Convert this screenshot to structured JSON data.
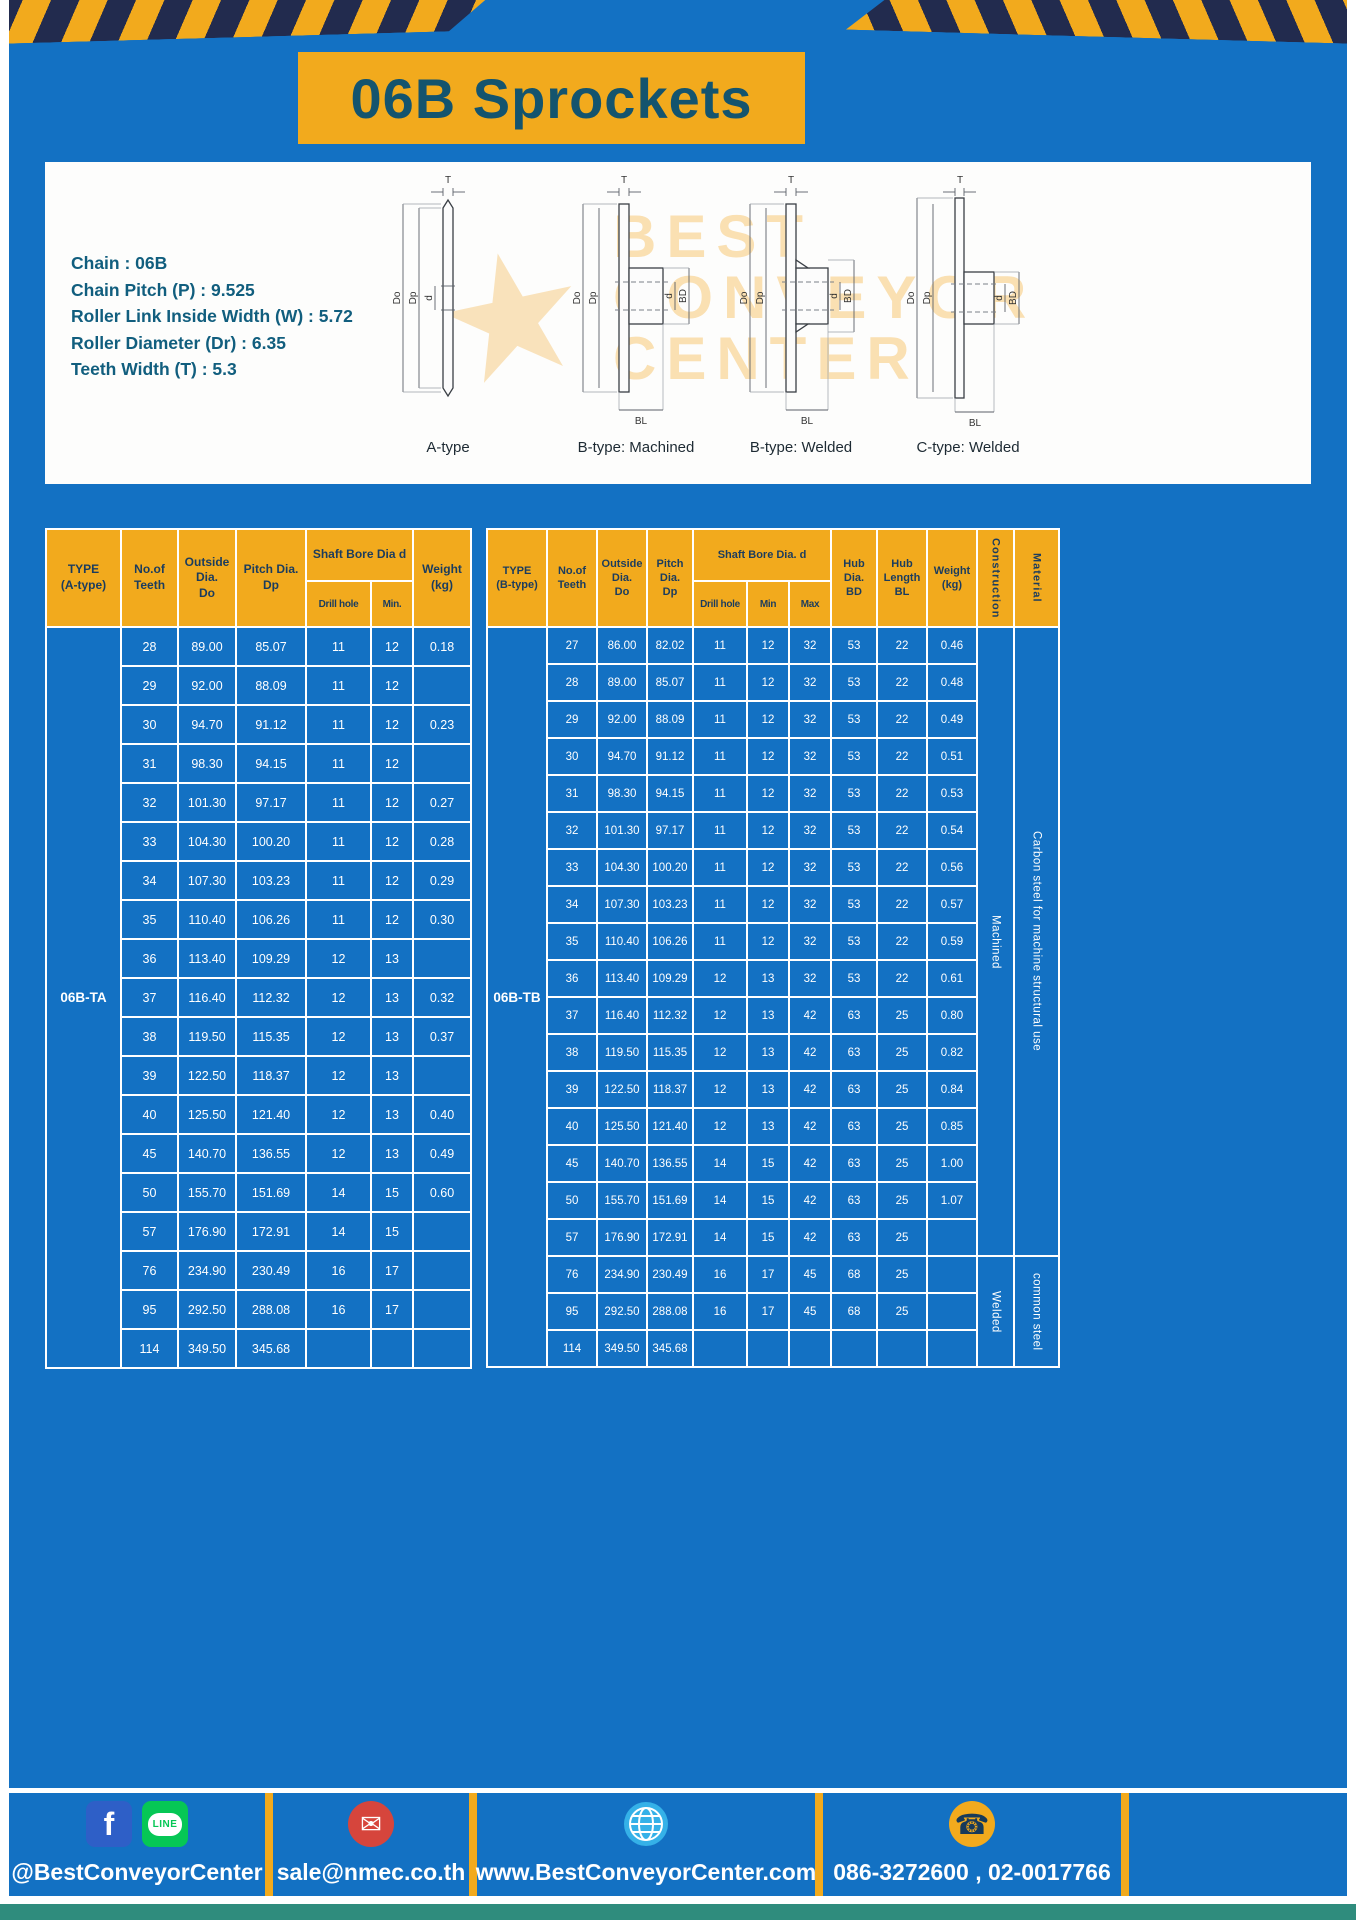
{
  "colors": {
    "background_blue": "#1371c3",
    "accent_yellow": "#f2aa1d",
    "header_text_navy": "#1b3c5e",
    "title_teal": "#14546e",
    "spec_text_teal": "#115e7e",
    "stripe_navy": "#222b4e",
    "teal_bar": "#2f8c7d",
    "facebook_blue": "#2e5fc7",
    "line_green": "#06c755",
    "mail_red": "#d6453c",
    "globe_blue": "#35b1e8"
  },
  "banner": {
    "title": "06B Sprockets"
  },
  "specs": {
    "lines": [
      "Chain : 06B",
      "Chain Pitch (P) : 9.525",
      "Roller Link Inside Width (W) : 5.72",
      "Roller Diameter (Dr) : 6.35",
      "Teeth Width (T) : 5.3"
    ]
  },
  "watermark": {
    "star": "★",
    "lines": [
      "BEST",
      "CONVEYOR",
      "CENTER"
    ]
  },
  "drawings": {
    "labels": [
      "A-type",
      "B-type: Machined",
      "B-type: Welded",
      "C-type: Welded"
    ],
    "dims": {
      "t": "T",
      "do": "Do",
      "dp": "Dp",
      "d": "d",
      "bd": "BD",
      "bl": "BL"
    }
  },
  "table_a": {
    "headers": {
      "type": "TYPE\n(A-type)",
      "teeth": "No.of\nTeeth",
      "outside": "Outside\nDia.\nDo",
      "pitch": "Pitch Dia.\nDp",
      "bore_group": "Shaft Bore Dia d",
      "drill": "Drill hole",
      "min": "Min.",
      "weight": "Weight\n(kg)"
    },
    "type_label": "06B-TA",
    "rows": [
      [
        "28",
        "89.00",
        "85.07",
        "11",
        "12",
        "0.18"
      ],
      [
        "29",
        "92.00",
        "88.09",
        "11",
        "12",
        ""
      ],
      [
        "30",
        "94.70",
        "91.12",
        "11",
        "12",
        "0.23"
      ],
      [
        "31",
        "98.30",
        "94.15",
        "11",
        "12",
        ""
      ],
      [
        "32",
        "101.30",
        "97.17",
        "11",
        "12",
        "0.27"
      ],
      [
        "33",
        "104.30",
        "100.20",
        "11",
        "12",
        "0.28"
      ],
      [
        "34",
        "107.30",
        "103.23",
        "11",
        "12",
        "0.29"
      ],
      [
        "35",
        "110.40",
        "106.26",
        "11",
        "12",
        "0.30"
      ],
      [
        "36",
        "113.40",
        "109.29",
        "12",
        "13",
        ""
      ],
      [
        "37",
        "116.40",
        "112.32",
        "12",
        "13",
        "0.32"
      ],
      [
        "38",
        "119.50",
        "115.35",
        "12",
        "13",
        "0.37"
      ],
      [
        "39",
        "122.50",
        "118.37",
        "12",
        "13",
        ""
      ],
      [
        "40",
        "125.50",
        "121.40",
        "12",
        "13",
        "0.40"
      ],
      [
        "45",
        "140.70",
        "136.55",
        "12",
        "13",
        "0.49"
      ],
      [
        "50",
        "155.70",
        "151.69",
        "14",
        "15",
        "0.60"
      ],
      [
        "57",
        "176.90",
        "172.91",
        "14",
        "15",
        ""
      ],
      [
        "76",
        "234.90",
        "230.49",
        "16",
        "17",
        ""
      ],
      [
        "95",
        "292.50",
        "288.08",
        "16",
        "17",
        ""
      ],
      [
        "114",
        "349.50",
        "345.68",
        "",
        "",
        ""
      ]
    ]
  },
  "table_b": {
    "headers": {
      "type": "TYPE\n(B-type)",
      "teeth": "No.of\nTeeth",
      "outside": "Outside\nDia.\nDo",
      "pitch": "Pitch\nDia.\nDp",
      "bore_group": "Shaft Bore Dia. d",
      "drill": "Drill hole",
      "min": "Min",
      "max": "Max",
      "hub_dia": "Hub\nDia.\nBD",
      "hub_len": "Hub\nLength\nBL",
      "weight": "Weight\n(kg)",
      "construction": "Construction",
      "material": "Material"
    },
    "type_label": "06B-TB",
    "rows": [
      [
        "27",
        "86.00",
        "82.02",
        "11",
        "12",
        "32",
        "53",
        "22",
        "0.46"
      ],
      [
        "28",
        "89.00",
        "85.07",
        "11",
        "12",
        "32",
        "53",
        "22",
        "0.48"
      ],
      [
        "29",
        "92.00",
        "88.09",
        "11",
        "12",
        "32",
        "53",
        "22",
        "0.49"
      ],
      [
        "30",
        "94.70",
        "91.12",
        "11",
        "12",
        "32",
        "53",
        "22",
        "0.51"
      ],
      [
        "31",
        "98.30",
        "94.15",
        "11",
        "12",
        "32",
        "53",
        "22",
        "0.53"
      ],
      [
        "32",
        "101.30",
        "97.17",
        "11",
        "12",
        "32",
        "53",
        "22",
        "0.54"
      ],
      [
        "33",
        "104.30",
        "100.20",
        "11",
        "12",
        "32",
        "53",
        "22",
        "0.56"
      ],
      [
        "34",
        "107.30",
        "103.23",
        "11",
        "12",
        "32",
        "53",
        "22",
        "0.57"
      ],
      [
        "35",
        "110.40",
        "106.26",
        "11",
        "12",
        "32",
        "53",
        "22",
        "0.59"
      ],
      [
        "36",
        "113.40",
        "109.29",
        "12",
        "13",
        "32",
        "53",
        "22",
        "0.61"
      ],
      [
        "37",
        "116.40",
        "112.32",
        "12",
        "13",
        "42",
        "63",
        "25",
        "0.80"
      ],
      [
        "38",
        "119.50",
        "115.35",
        "12",
        "13",
        "42",
        "63",
        "25",
        "0.82"
      ],
      [
        "39",
        "122.50",
        "118.37",
        "12",
        "13",
        "42",
        "63",
        "25",
        "0.84"
      ],
      [
        "40",
        "125.50",
        "121.40",
        "12",
        "13",
        "42",
        "63",
        "25",
        "0.85"
      ],
      [
        "45",
        "140.70",
        "136.55",
        "14",
        "15",
        "42",
        "63",
        "25",
        "1.00"
      ],
      [
        "50",
        "155.70",
        "151.69",
        "14",
        "15",
        "42",
        "63",
        "25",
        "1.07"
      ],
      [
        "57",
        "176.90",
        "172.91",
        "14",
        "15",
        "42",
        "63",
        "25",
        ""
      ],
      [
        "76",
        "234.90",
        "230.49",
        "16",
        "17",
        "45",
        "68",
        "25",
        ""
      ],
      [
        "95",
        "292.50",
        "288.08",
        "16",
        "17",
        "45",
        "68",
        "25",
        ""
      ],
      [
        "114",
        "349.50",
        "345.68",
        "",
        "",
        "",
        "",
        "",
        ""
      ]
    ],
    "span_columns": [
      {
        "name": "construction",
        "segments": [
          {
            "label": "Machined",
            "rows": 17
          },
          {
            "label": "Welded",
            "rows": 3
          }
        ]
      },
      {
        "name": "material",
        "segments": [
          {
            "label": "Carbon steel for machine structural use",
            "rows": 17
          },
          {
            "label": "common steel",
            "rows": 3
          }
        ]
      }
    ]
  },
  "footer": {
    "facebook_label": "f",
    "line_label": "LINE",
    "social_handle": "@BestConveyorCenter",
    "email": "sale@nmec.co.th",
    "website": "www.BestConveyorCenter.com",
    "phones": "086-3272600 , 02-0017766",
    "mail_glyph": "✉",
    "phone_glyph": "☎"
  }
}
